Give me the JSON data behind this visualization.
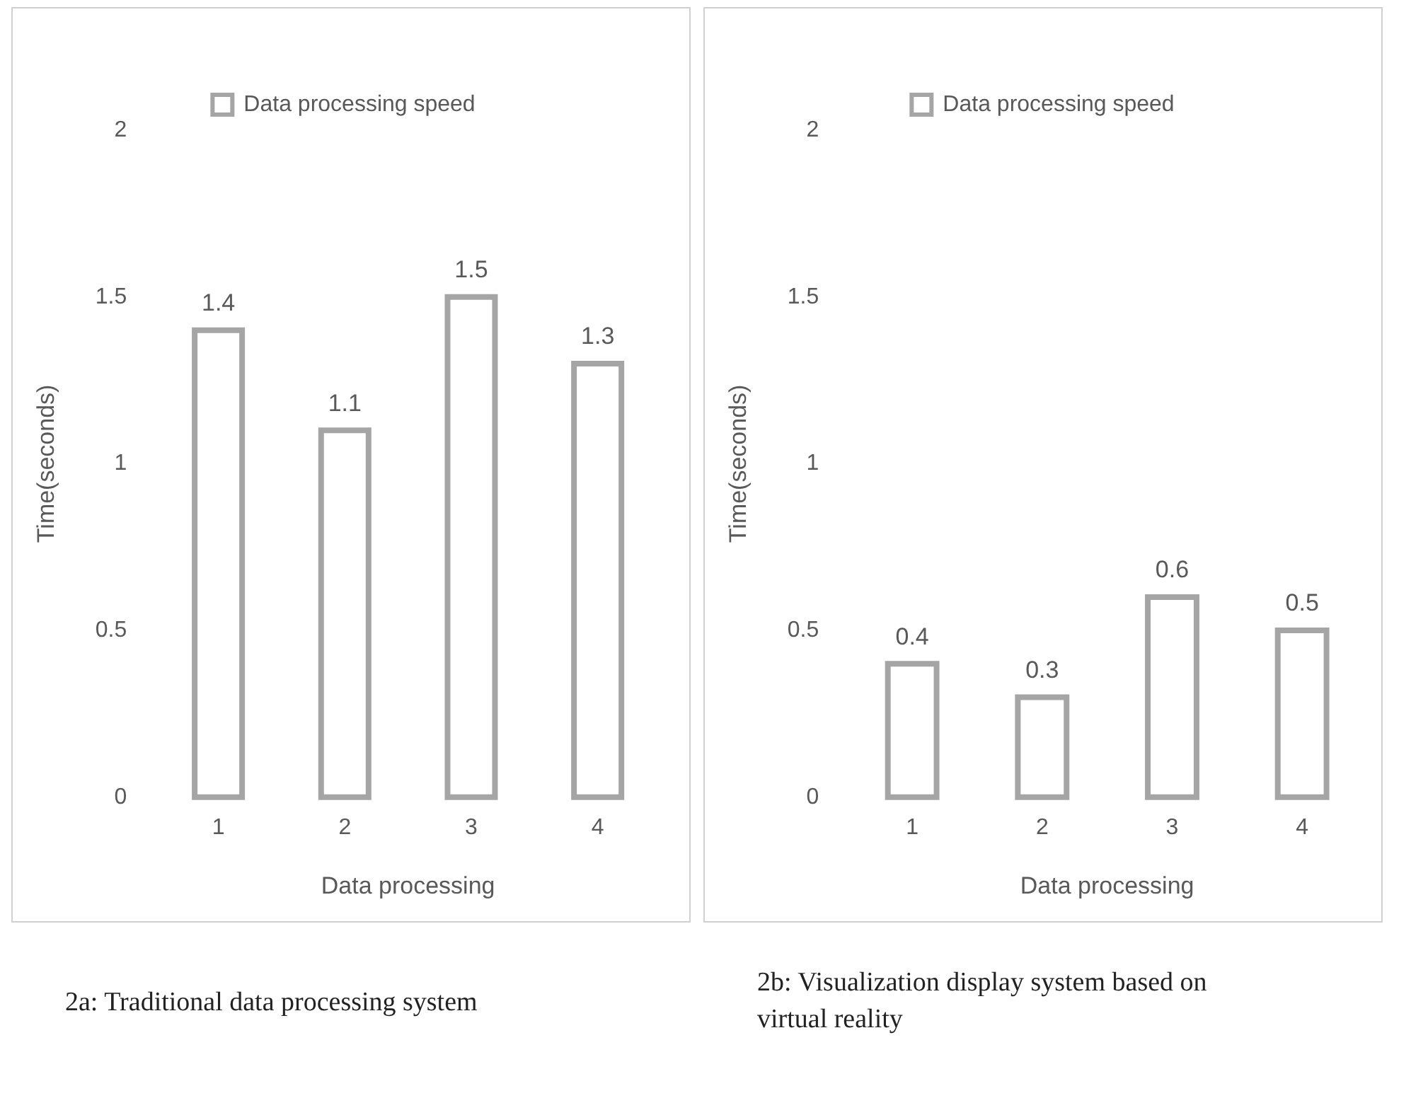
{
  "chart_data": [
    {
      "type": "bar",
      "xlabel": "Data processing",
      "ylabel": "Time(seconds)",
      "categories": [
        "1",
        "2",
        "3",
        "4"
      ],
      "series": [
        {
          "name": "Data processing speed",
          "color": "#a5a5a5",
          "values": [
            1.4,
            1.1,
            1.5,
            1.3
          ]
        }
      ],
      "ylim": [
        0,
        2
      ],
      "yticks": [
        0,
        0.5,
        1,
        1.5,
        2
      ],
      "grid": false,
      "legend": "top",
      "data_labels": true,
      "annotations": [
        "2a: Traditional data processing system"
      ]
    },
    {
      "type": "bar",
      "xlabel": "Data processing",
      "ylabel": "Time(seconds)",
      "categories": [
        "1",
        "2",
        "3",
        "4"
      ],
      "series": [
        {
          "name": "Data processing speed",
          "color": "#a5a5a5",
          "values": [
            0.4,
            0.3,
            0.6,
            0.5
          ]
        }
      ],
      "ylim": [
        0,
        2
      ],
      "yticks": [
        0,
        0.5,
        1,
        1.5,
        2
      ],
      "grid": false,
      "legend": "top",
      "data_labels": true,
      "annotations": [
        "2b: Visualization display system based on virtual reality"
      ]
    }
  ]
}
